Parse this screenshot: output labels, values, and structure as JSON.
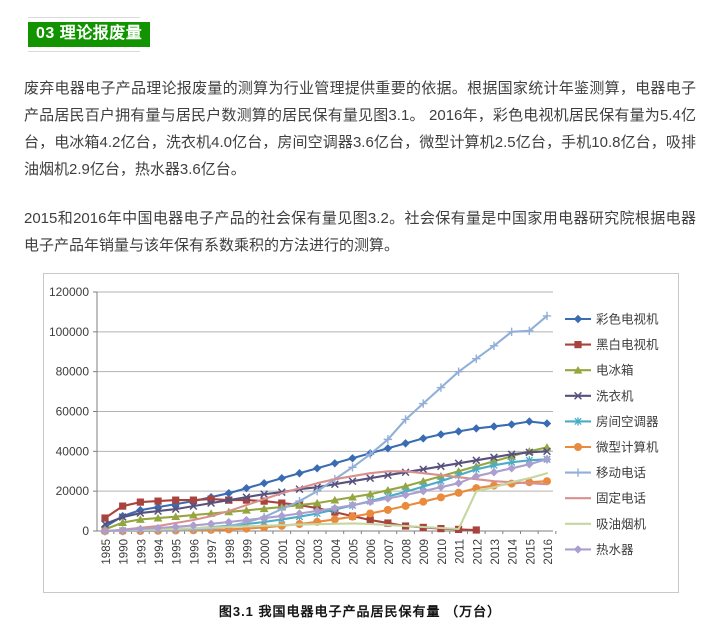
{
  "page": {
    "section_title": "03 理论报废量",
    "accent_green": "#119400",
    "paragraph1": "废弃电器电子产品理论报废量的测算为行业管理提供重要的依据。根据国家统计年鉴测算，电器电子产品居民百户拥有量与居民户数测算的居民保有量见图3.1。 2016年，彩色电视机居民保有量为5.4亿台，电冰箱4.2亿台，洗衣机4.0亿台，房间空调器3.6亿台，微型计算机2.5亿台，手机10.8亿台，吸排油烟机2.9亿台，热水器3.6亿台。",
    "paragraph2": "2015和2016年中国电器电子产品的社会保有量见图3.2。社会保有量是中国家用电器研究院根据电器电子产品年销量与该年保有系数乘积的方法进行的测算。",
    "figure_caption": "图3.1 我国电器电子产品居民保有量 （万台）"
  },
  "chart_data": {
    "type": "line",
    "title": "",
    "xlabel": "",
    "ylabel": "",
    "ylim": [
      0,
      120000
    ],
    "ytick_step": 20000,
    "grid": true,
    "legend_position": "right",
    "x": [
      "1985",
      "1990",
      "1993",
      "1994",
      "1995",
      "1996",
      "1997",
      "1998",
      "1999",
      "2000",
      "2001",
      "2002",
      "2003",
      "2004",
      "2005",
      "2006",
      "2007",
      "2008",
      "2009",
      "2010",
      "2011",
      "2012",
      "2013",
      "2014",
      "2015",
      "2016"
    ],
    "series": [
      {
        "name": "彩色电视机",
        "color": "#3A6CB3",
        "marker": "diamond",
        "values": [
          2000,
          7500,
          10500,
          12000,
          13500,
          15000,
          17000,
          19000,
          21500,
          24000,
          26500,
          29000,
          31500,
          34000,
          36500,
          39000,
          41500,
          44000,
          46500,
          48500,
          50000,
          51500,
          52500,
          53500,
          55000,
          54000
        ]
      },
      {
        "name": "黑白电视机",
        "color": "#A9433D",
        "marker": "square",
        "values": [
          6500,
          12500,
          14500,
          15000,
          15500,
          15500,
          16000,
          15500,
          15500,
          15000,
          14000,
          13000,
          11500,
          9500,
          7500,
          5500,
          4000,
          2500,
          1800,
          1200,
          800,
          500,
          null,
          null,
          null,
          null
        ]
      },
      {
        "name": "电冰箱",
        "color": "#96A63F",
        "marker": "triangle",
        "values": [
          800,
          4200,
          5800,
          6500,
          7200,
          8000,
          8800,
          9600,
          10400,
          11200,
          12000,
          13000,
          14000,
          15500,
          17000,
          18500,
          20500,
          22500,
          25000,
          27500,
          30000,
          32500,
          35000,
          37500,
          40000,
          42000
        ]
      },
      {
        "name": "洗衣机",
        "color": "#57517E",
        "marker": "x",
        "values": [
          3500,
          7000,
          9000,
          10000,
          11000,
          12500,
          14000,
          15500,
          17000,
          18500,
          19500,
          21000,
          22000,
          23500,
          25000,
          26500,
          28000,
          29500,
          31000,
          32500,
          34000,
          35500,
          37000,
          38500,
          39500,
          40000
        ]
      },
      {
        "name": "房间空调器",
        "color": "#4BACC6",
        "marker": "asterisk",
        "values": [
          0,
          150,
          400,
          600,
          900,
          1300,
          1900,
          2600,
          3500,
          4500,
          5800,
          7200,
          8800,
          10800,
          12800,
          15000,
          17300,
          19700,
          22300,
          25000,
          28000,
          31000,
          33000,
          34500,
          35500,
          36000
        ]
      },
      {
        "name": "微型计算机",
        "color": "#E98A3D",
        "marker": "circle",
        "values": [
          0,
          0,
          0,
          100,
          200,
          350,
          550,
          800,
          1200,
          1800,
          2600,
          3500,
          4600,
          5800,
          7200,
          8800,
          10600,
          12600,
          14700,
          16900,
          19200,
          21500,
          22800,
          23800,
          24500,
          25000
        ]
      },
      {
        "name": "移动电话",
        "color": "#92AFD7",
        "marker": "plus",
        "values": [
          0,
          0,
          100,
          200,
          400,
          700,
          1300,
          2400,
          4300,
          7000,
          11000,
          15000,
          20000,
          26000,
          32000,
          38500,
          46000,
          56000,
          64000,
          72000,
          80000,
          86500,
          93000,
          100000,
          100500,
          108000
        ]
      },
      {
        "name": "固定电话",
        "color": "#D8908F",
        "marker": "none",
        "values": [
          0,
          600,
          1600,
          2500,
          4000,
          5500,
          7500,
          10000,
          13000,
          16000,
          19000,
          21500,
          24000,
          26000,
          27500,
          29000,
          30000,
          30000,
          29000,
          28000,
          27000,
          26000,
          25000,
          24500,
          24000,
          23500
        ]
      },
      {
        "name": "吸油烟机",
        "color": "#C6D6A0",
        "marker": "none",
        "values": [
          0,
          200,
          500,
          800,
          1100,
          1400,
          1700,
          2000,
          2300,
          2600,
          2900,
          3200,
          3400,
          3600,
          3800,
          3500,
          3000,
          2500,
          2000,
          1500,
          1000,
          20000,
          22000,
          24500,
          26500,
          29000
        ]
      },
      {
        "name": "热水器",
        "color": "#AC9FD0",
        "marker": "diamond",
        "values": [
          0,
          400,
          1000,
          1500,
          2100,
          2800,
          3600,
          4500,
          5500,
          6500,
          7600,
          8800,
          10100,
          11500,
          13000,
          14600,
          16300,
          18100,
          20000,
          22000,
          24000,
          27500,
          29500,
          31500,
          33500,
          36000
        ]
      }
    ]
  }
}
